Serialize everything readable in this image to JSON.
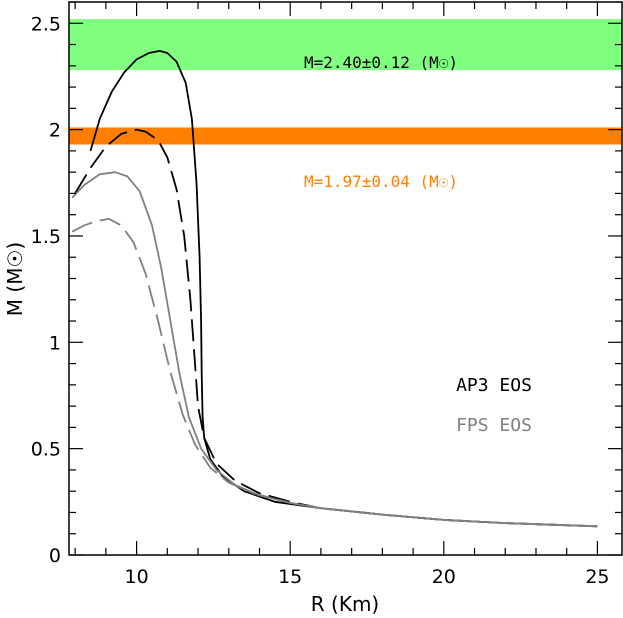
{
  "chart_data": {
    "type": "line",
    "xlabel": "R (Km)",
    "ylabel": "M (M☉)",
    "xlim": [
      7.8,
      25.8
    ],
    "ylim": [
      0,
      2.6
    ],
    "xticks": [
      10,
      15,
      20,
      25
    ],
    "yticks": [
      0,
      0.5,
      1,
      1.5,
      2,
      2.5
    ],
    "xtick_labels": [
      "10",
      "15",
      "20",
      "25"
    ],
    "ytick_labels": [
      "0",
      "0.5",
      "1",
      "1.5",
      "2",
      "2.5"
    ],
    "bands": [
      {
        "label": "M=2.40±0.12 (M☉)",
        "ymin": 2.28,
        "ymax": 2.52,
        "color": "#80ff80",
        "text_color": "#000000"
      },
      {
        "label": "M=1.97±0.04 (M☉)",
        "ymin": 1.93,
        "ymax": 2.01,
        "color": "#ff8000",
        "text_color": "#ff8000"
      }
    ],
    "legend": [
      {
        "label": "AP3 EOS",
        "color": "#000000"
      },
      {
        "label": "FPS EOS",
        "color": "#808080"
      }
    ],
    "series": [
      {
        "eos": "AP3",
        "style": "solid",
        "color": "#000000",
        "points": [
          [
            8.5,
            1.9
          ],
          [
            8.8,
            2.05
          ],
          [
            9.2,
            2.18
          ],
          [
            9.6,
            2.27
          ],
          [
            10.0,
            2.33
          ],
          [
            10.4,
            2.36
          ],
          [
            10.75,
            2.37
          ],
          [
            11.0,
            2.36
          ],
          [
            11.3,
            2.32
          ],
          [
            11.6,
            2.22
          ],
          [
            11.8,
            2.05
          ],
          [
            11.95,
            1.75
          ],
          [
            12.05,
            1.4
          ],
          [
            12.1,
            1.1
          ],
          [
            12.12,
            0.85
          ],
          [
            12.15,
            0.65
          ],
          [
            12.2,
            0.55
          ],
          [
            12.4,
            0.45
          ],
          [
            12.8,
            0.37
          ],
          [
            13.5,
            0.3
          ],
          [
            14.5,
            0.25
          ],
          [
            16,
            0.22
          ],
          [
            18,
            0.19
          ],
          [
            20,
            0.165
          ],
          [
            22,
            0.15
          ],
          [
            25,
            0.135
          ]
        ]
      },
      {
        "eos": "AP3",
        "style": "dashed",
        "color": "#000000",
        "points": [
          [
            8.0,
            1.7
          ],
          [
            8.5,
            1.82
          ],
          [
            9.0,
            1.92
          ],
          [
            9.5,
            1.98
          ],
          [
            10.0,
            2.0
          ],
          [
            10.3,
            1.99
          ],
          [
            10.7,
            1.95
          ],
          [
            11.0,
            1.87
          ],
          [
            11.3,
            1.72
          ],
          [
            11.55,
            1.5
          ],
          [
            11.75,
            1.2
          ],
          [
            11.9,
            0.9
          ],
          [
            12.0,
            0.7
          ],
          [
            12.2,
            0.55
          ],
          [
            12.6,
            0.43
          ],
          [
            13.2,
            0.35
          ],
          [
            14,
            0.29
          ],
          [
            15,
            0.25
          ],
          [
            16,
            0.22
          ],
          [
            18,
            0.19
          ],
          [
            20,
            0.165
          ],
          [
            22,
            0.15
          ],
          [
            25,
            0.135
          ]
        ]
      },
      {
        "eos": "FPS",
        "style": "solid",
        "color": "#808080",
        "points": [
          [
            7.9,
            1.68
          ],
          [
            8.3,
            1.74
          ],
          [
            8.8,
            1.79
          ],
          [
            9.3,
            1.8
          ],
          [
            9.7,
            1.78
          ],
          [
            10.1,
            1.71
          ],
          [
            10.5,
            1.55
          ],
          [
            10.8,
            1.35
          ],
          [
            11.1,
            1.1
          ],
          [
            11.4,
            0.85
          ],
          [
            11.7,
            0.65
          ],
          [
            12.1,
            0.5
          ],
          [
            12.6,
            0.4
          ],
          [
            13.2,
            0.33
          ],
          [
            14,
            0.28
          ],
          [
            15,
            0.245
          ],
          [
            16,
            0.22
          ],
          [
            18,
            0.19
          ],
          [
            20,
            0.165
          ],
          [
            22,
            0.15
          ],
          [
            25,
            0.135
          ]
        ]
      },
      {
        "eos": "FPS",
        "style": "dashed",
        "color": "#808080",
        "points": [
          [
            7.9,
            1.52
          ],
          [
            8.3,
            1.55
          ],
          [
            8.7,
            1.57
          ],
          [
            9.1,
            1.58
          ],
          [
            9.5,
            1.55
          ],
          [
            9.9,
            1.47
          ],
          [
            10.3,
            1.32
          ],
          [
            10.7,
            1.1
          ],
          [
            11.1,
            0.86
          ],
          [
            11.5,
            0.66
          ],
          [
            11.9,
            0.52
          ],
          [
            12.4,
            0.41
          ],
          [
            13,
            0.34
          ],
          [
            13.8,
            0.29
          ],
          [
            15,
            0.245
          ],
          [
            16,
            0.22
          ],
          [
            18,
            0.19
          ],
          [
            20,
            0.165
          ],
          [
            22,
            0.15
          ],
          [
            25,
            0.135
          ]
        ]
      }
    ]
  }
}
